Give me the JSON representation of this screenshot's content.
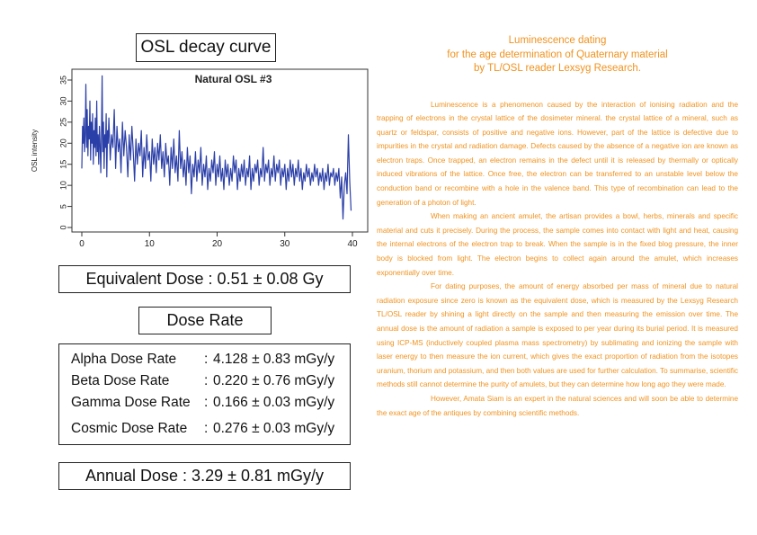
{
  "panel": {
    "title": "OSL decay curve",
    "equivalent_dose": "Equivalent Dose : 0.51 ± 0.08 Gy",
    "dose_rate_title": "Dose Rate",
    "dose_rates": [
      {
        "label": "Alpha Dose Rate",
        "value": "4.128 ± 0.83 mGy/y"
      },
      {
        "label": "Beta Dose Rate",
        "value": "0.220 ± 0.76 mGy/y"
      },
      {
        "label": "Gamma Dose Rate",
        "value": "0.166 ± 0.03 mGy/y"
      },
      {
        "label": "Cosmic Dose Rate",
        "value": "0.276 ± 0.03 mGy/y"
      }
    ],
    "separator": ":",
    "annual_dose": "Annual Dose : 3.29 ± 0.81 mGy/y"
  },
  "article": {
    "heading": [
      "Luminescence dating",
      "for the age determination of Quaternary material",
      "by TL/OSL reader Lexsyg Research."
    ],
    "paragraphs": [
      "Luminescence is a phenomenon caused by the interaction of ionising radiation and the trapping of electrons in the crystal lattice of the dosimeter mineral. the crystal lattice of a mineral, such as quartz or feldspar, consists of positive and negative ions. However, part of the lattice is defective due to impurities in the crystal and radiation damage. Defects caused by the absence of a negative ion are known as electron traps. Once trapped, an electron remains in the defect until it is released by thermally or optically induced vibrations of the lattice. Once free, the electron can be transferred to an unstable level below the conduction band or recombine with a hole in the valence band. This type of recombination can lead to the generation of a photon of light.",
      "When making an ancient amulet, the artisan provides a bowl, herbs, minerals and specific material and cuts it precisely. During the process, the sample comes into contact with light and heat, causing the internal electrons of the electron trap to break. When the sample is in the fixed blog pressure, the inner body is blocked from light. The electron begins to collect again around the amulet, which increases exponentially over time.",
      "For dating purposes, the amount of energy absorbed per mass of mineral due to natural radiation exposure since zero is known as the equivalent dose, which is measured by the Lexsyg Research TL/OSL reader by shining a light directly on the sample and then measuring the emission over time. The annual dose is the amount of radiation a sample is exposed to per year during its burial period. It is measured using ICP-MS (inductively coupled plasma mass spectrometry) by sublimating and ionizing the sample with laser energy to then measure the ion current, which gives the exact proportion of radiation from the isotopes uranium, thorium and potassium, and then both values are used for further calculation. To summarise, scientific methods still cannot determine the purity of amulets, but they can determine how long ago they were made.",
      "However, Amata Siam is an expert in the natural sciences and will soon be able to determine the exact age of the antiques by combining scientific methods."
    ],
    "text_color": "#f0921e"
  },
  "chart_data": {
    "type": "line",
    "title": "Natural OSL #3",
    "xlabel": "",
    "ylabel": "OSL intensity",
    "xlim": [
      0,
      40
    ],
    "ylim": [
      0,
      35
    ],
    "xticks": [
      0,
      10,
      20,
      30,
      40
    ],
    "yticks": [
      0,
      5,
      10,
      15,
      20,
      25,
      30,
      35
    ],
    "grid": false,
    "line_color": "#2b3fa8",
    "series": [
      {
        "values": [
          [
            0.0,
            14
          ],
          [
            0.1,
            24
          ],
          [
            0.2,
            20
          ],
          [
            0.3,
            26
          ],
          [
            0.4,
            18
          ],
          [
            0.5,
            22
          ],
          [
            0.6,
            34
          ],
          [
            0.7,
            19
          ],
          [
            0.8,
            28
          ],
          [
            0.9,
            17
          ],
          [
            1.0,
            24
          ],
          [
            1.1,
            21
          ],
          [
            1.2,
            30
          ],
          [
            1.3,
            16
          ],
          [
            1.4,
            25
          ],
          [
            1.5,
            20
          ],
          [
            1.6,
            27
          ],
          [
            1.7,
            15
          ],
          [
            1.8,
            23
          ],
          [
            1.9,
            19
          ],
          [
            2.0,
            26
          ],
          [
            2.1,
            17
          ],
          [
            2.2,
            30
          ],
          [
            2.3,
            18
          ],
          [
            2.4,
            22
          ],
          [
            2.5,
            15
          ],
          [
            2.6,
            24
          ],
          [
            2.7,
            20
          ],
          [
            2.8,
            13
          ],
          [
            2.9,
            21
          ],
          [
            3.0,
            36
          ],
          [
            3.1,
            18
          ],
          [
            3.2,
            25
          ],
          [
            3.3,
            14
          ],
          [
            3.4,
            22
          ],
          [
            3.5,
            19
          ],
          [
            3.6,
            27
          ],
          [
            3.7,
            12
          ],
          [
            3.8,
            23
          ],
          [
            3.9,
            20
          ],
          [
            4.0,
            26
          ],
          [
            4.2,
            16
          ],
          [
            4.4,
            22
          ],
          [
            4.6,
            19
          ],
          [
            4.8,
            28
          ],
          [
            5.0,
            14
          ],
          [
            5.2,
            24
          ],
          [
            5.4,
            18
          ],
          [
            5.6,
            21
          ],
          [
            5.8,
            13
          ],
          [
            6.0,
            25
          ],
          [
            6.2,
            17
          ],
          [
            6.4,
            23
          ],
          [
            6.6,
            19
          ],
          [
            6.8,
            12
          ],
          [
            7.0,
            22
          ],
          [
            7.2,
            16
          ],
          [
            7.4,
            24
          ],
          [
            7.6,
            18
          ],
          [
            7.8,
            11
          ],
          [
            8.0,
            21
          ],
          [
            8.2,
            15
          ],
          [
            8.4,
            20
          ],
          [
            8.6,
            17
          ],
          [
            8.8,
            23
          ],
          [
            9.0,
            12
          ],
          [
            9.2,
            19
          ],
          [
            9.4,
            14
          ],
          [
            9.6,
            22
          ],
          [
            9.8,
            16
          ],
          [
            10.0,
            18
          ],
          [
            10.2,
            11
          ],
          [
            10.4,
            21
          ],
          [
            10.6,
            15
          ],
          [
            10.8,
            19
          ],
          [
            11.0,
            13
          ],
          [
            11.2,
            20
          ],
          [
            11.4,
            16
          ],
          [
            11.6,
            22
          ],
          [
            11.8,
            14
          ],
          [
            12.0,
            18
          ],
          [
            12.2,
            12
          ],
          [
            12.4,
            20
          ],
          [
            12.6,
            15
          ],
          [
            12.8,
            17
          ],
          [
            13.0,
            10
          ],
          [
            13.2,
            19
          ],
          [
            13.4,
            14
          ],
          [
            13.6,
            21
          ],
          [
            13.8,
            13
          ],
          [
            14.0,
            17
          ],
          [
            14.2,
            11
          ],
          [
            14.4,
            23
          ],
          [
            14.6,
            14
          ],
          [
            14.8,
            18
          ],
          [
            15.0,
            12
          ],
          [
            15.2,
            16
          ],
          [
            15.4,
            10
          ],
          [
            15.6,
            19
          ],
          [
            15.8,
            13
          ],
          [
            16.0,
            17
          ],
          [
            16.2,
            8
          ],
          [
            16.4,
            15
          ],
          [
            16.6,
            12
          ],
          [
            16.8,
            18
          ],
          [
            17.0,
            11
          ],
          [
            17.2,
            16
          ],
          [
            17.4,
            13
          ],
          [
            17.6,
            19
          ],
          [
            17.8,
            10
          ],
          [
            18.0,
            15
          ],
          [
            18.2,
            12
          ],
          [
            18.4,
            17
          ],
          [
            18.6,
            9
          ],
          [
            18.8,
            14
          ],
          [
            19.0,
            11
          ],
          [
            19.2,
            16
          ],
          [
            19.4,
            13
          ],
          [
            19.6,
            18
          ],
          [
            19.8,
            10
          ],
          [
            20.0,
            15
          ],
          [
            20.2,
            12
          ],
          [
            20.4,
            17
          ],
          [
            20.6,
            11
          ],
          [
            20.8,
            14
          ],
          [
            21.0,
            9
          ],
          [
            21.2,
            16
          ],
          [
            21.4,
            12
          ],
          [
            21.6,
            15
          ],
          [
            21.8,
            10
          ],
          [
            22.0,
            14
          ],
          [
            22.2,
            11
          ],
          [
            22.4,
            17
          ],
          [
            22.6,
            13
          ],
          [
            22.8,
            16
          ],
          [
            23.0,
            9
          ],
          [
            23.2,
            14
          ],
          [
            23.4,
            11
          ],
          [
            23.6,
            15
          ],
          [
            23.8,
            12
          ],
          [
            24.0,
            16
          ],
          [
            24.2,
            10
          ],
          [
            24.4,
            14
          ],
          [
            24.6,
            12
          ],
          [
            24.8,
            17
          ],
          [
            25.0,
            9
          ],
          [
            25.2,
            14
          ],
          [
            25.4,
            11
          ],
          [
            25.6,
            15
          ],
          [
            25.8,
            13
          ],
          [
            26.0,
            16
          ],
          [
            26.2,
            10
          ],
          [
            26.4,
            14
          ],
          [
            26.6,
            12
          ],
          [
            26.8,
            19
          ],
          [
            27.0,
            11
          ],
          [
            27.2,
            15
          ],
          [
            27.4,
            13
          ],
          [
            27.6,
            16
          ],
          [
            27.8,
            10
          ],
          [
            28.0,
            14
          ],
          [
            28.2,
            12
          ],
          [
            28.4,
            17
          ],
          [
            28.6,
            11
          ],
          [
            28.8,
            15
          ],
          [
            29.0,
            13
          ],
          [
            29.2,
            16
          ],
          [
            29.4,
            10
          ],
          [
            29.6,
            14
          ],
          [
            29.8,
            12
          ],
          [
            30.0,
            15
          ],
          [
            30.2,
            9
          ],
          [
            30.4,
            14
          ],
          [
            30.6,
            11
          ],
          [
            30.8,
            16
          ],
          [
            31.0,
            12
          ],
          [
            31.2,
            15
          ],
          [
            31.4,
            10
          ],
          [
            31.6,
            14
          ],
          [
            31.8,
            12
          ],
          [
            32.0,
            16
          ],
          [
            32.2,
            11
          ],
          [
            32.4,
            14
          ],
          [
            32.6,
            9
          ],
          [
            32.8,
            13
          ],
          [
            33.0,
            11
          ],
          [
            33.2,
            15
          ],
          [
            33.4,
            12
          ],
          [
            33.6,
            14
          ],
          [
            33.8,
            10
          ],
          [
            34.0,
            13
          ],
          [
            34.2,
            11
          ],
          [
            34.4,
            15
          ],
          [
            34.6,
            12
          ],
          [
            34.8,
            14
          ],
          [
            35.0,
            10
          ],
          [
            35.2,
            13
          ],
          [
            35.4,
            11
          ],
          [
            35.6,
            14
          ],
          [
            35.8,
            9
          ],
          [
            36.0,
            13
          ],
          [
            36.2,
            11
          ],
          [
            36.4,
            15
          ],
          [
            36.6,
            10
          ],
          [
            36.8,
            13
          ],
          [
            37.0,
            12
          ],
          [
            37.2,
            14
          ],
          [
            37.4,
            10
          ],
          [
            37.6,
            13
          ],
          [
            37.8,
            11
          ],
          [
            38.0,
            14
          ],
          [
            38.2,
            7
          ],
          [
            38.4,
            12
          ],
          [
            38.6,
            2
          ],
          [
            38.8,
            10
          ],
          [
            39.0,
            13
          ],
          [
            39.2,
            8
          ],
          [
            39.4,
            22
          ],
          [
            39.6,
            11
          ],
          [
            39.8,
            4
          ]
        ]
      }
    ]
  }
}
